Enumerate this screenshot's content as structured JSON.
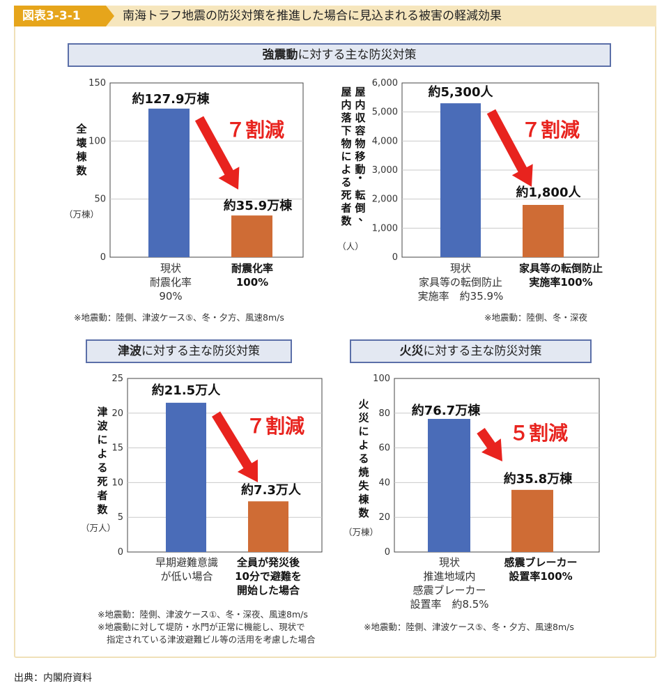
{
  "header": {
    "figure_label": "図表3-3-1",
    "title": "南海トラフ地震の防災対策を推進した場合に見込まれる被害の軽減効果"
  },
  "sections": {
    "shaking": {
      "bold": "強震動",
      "rest": "に対する主な防災対策"
    },
    "tsunami": {
      "bold": "津波",
      "rest": "に対する主な防災対策"
    },
    "fire": {
      "bold": "火災",
      "rest": "に対する主な防災対策"
    }
  },
  "footnotes": {
    "chart1": "※地震動：陸側、津波ケース⑤、冬・夕方、風速8m/s",
    "chart2": "※地震動：陸側、冬・深夜",
    "chart3_line1": "※地震動：陸側、津波ケース①、冬・深夜、風速8m/s",
    "chart3_line2": "※地震動に対して堤防・水門が正常に機能し、現状で",
    "chart3_line3": "指定されている津波避難ビル等の活用を考慮した場合",
    "chart4": "※地震動：陸側、津波ケース⑤、冬・夕方、風速8m/s"
  },
  "source": "出典：内閣府資料",
  "colors": {
    "blue_bar": "#4a6cb8",
    "orange_bar": "#cf6c35",
    "arrow_red": "#e8231e",
    "accent": "#e6a51b"
  },
  "chart_data": [
    {
      "type": "bar",
      "ylabel": "全壊棟数",
      "unit": "（万棟）",
      "ylim": [
        0,
        150
      ],
      "ticks": [
        "0",
        "50",
        "100",
        "150"
      ],
      "tick_values": [
        0,
        50,
        100,
        150
      ],
      "values": [
        127.9,
        35.9
      ],
      "value_labels": [
        "約127.9万棟",
        "約35.9万棟"
      ],
      "categories": [
        [
          "現状",
          "耐震化率",
          "90%"
        ],
        [
          "耐震化率",
          "100%"
        ]
      ],
      "category_bold": [
        false,
        true
      ],
      "reduction": "７割減"
    },
    {
      "type": "bar",
      "ylabel_lines": [
        "屋内収容物移動・転倒、",
        "屋内落下物による死者数"
      ],
      "unit": "（人）",
      "ylim": [
        0,
        6000
      ],
      "ticks": [
        "0",
        "1,000",
        "2,000",
        "3,000",
        "4,000",
        "5,000",
        "6,000"
      ],
      "tick_values": [
        0,
        1000,
        2000,
        3000,
        4000,
        5000,
        6000
      ],
      "values": [
        5300,
        1800
      ],
      "value_labels": [
        "約5,300人",
        "約1,800人"
      ],
      "categories": [
        [
          "現状",
          "家具等の転倒防止",
          "実施率　約35.9%"
        ],
        [
          "家具等の転倒防止",
          "実施率100%"
        ]
      ],
      "category_bold": [
        false,
        true
      ],
      "reduction": "７割減"
    },
    {
      "type": "bar",
      "ylabel": "津波による死者数",
      "unit": "（万人）",
      "ylim": [
        0,
        25
      ],
      "ticks": [
        "0",
        "5",
        "10",
        "15",
        "20",
        "25"
      ],
      "tick_values": [
        0,
        5,
        10,
        15,
        20,
        25
      ],
      "values": [
        21.5,
        7.3
      ],
      "value_labels": [
        "約21.5万人",
        "約7.3万人"
      ],
      "categories": [
        [
          "早期避難意識",
          "が低い場合"
        ],
        [
          "全員が発災後",
          "10分で避難を",
          "開始した場合"
        ]
      ],
      "category_bold": [
        false,
        true
      ],
      "reduction": "７割減"
    },
    {
      "type": "bar",
      "ylabel": "火災による焼失棟数",
      "unit": "（万棟）",
      "ylim": [
        0,
        100
      ],
      "ticks": [
        "0",
        "20",
        "40",
        "60",
        "80",
        "100"
      ],
      "tick_values": [
        0,
        20,
        40,
        60,
        80,
        100
      ],
      "values": [
        76.7,
        35.8
      ],
      "value_labels": [
        "約76.7万棟",
        "約35.8万棟"
      ],
      "categories": [
        [
          "現状",
          "推進地域内",
          "感震ブレーカー",
          "設置率　約8.5%"
        ],
        [
          "感震ブレーカー",
          "設置率100%"
        ]
      ],
      "category_bold": [
        false,
        true
      ],
      "reduction": "５割減"
    }
  ]
}
